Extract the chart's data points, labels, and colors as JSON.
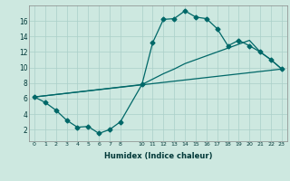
{
  "xlabel": "Humidex (Indice chaleur)",
  "background_color": "#cde8e0",
  "grid_color": "#aacfc8",
  "line_color": "#006868",
  "xlim": [
    -0.5,
    23.5
  ],
  "ylim": [
    0.5,
    18
  ],
  "xticks": [
    0,
    1,
    2,
    3,
    4,
    5,
    6,
    7,
    8,
    10,
    11,
    12,
    13,
    14,
    15,
    16,
    17,
    18,
    19,
    20,
    21,
    22,
    23
  ],
  "yticks": [
    2,
    4,
    6,
    8,
    10,
    12,
    14,
    16
  ],
  "line1_x": [
    0,
    1,
    2,
    3,
    4,
    5,
    6,
    7,
    8,
    10,
    11,
    12,
    13,
    14,
    15,
    16,
    17,
    18,
    19,
    20,
    21,
    22,
    23
  ],
  "line1_y": [
    6.2,
    5.5,
    4.5,
    3.2,
    2.3,
    2.4,
    1.5,
    2.0,
    3.0,
    7.8,
    13.2,
    16.2,
    16.3,
    17.3,
    16.5,
    16.3,
    15.0,
    12.8,
    13.5,
    12.8,
    12.0,
    11.0,
    9.8
  ],
  "line2_x": [
    0,
    10,
    11,
    12,
    13,
    14,
    15,
    16,
    17,
    18,
    19,
    20,
    21,
    22,
    23
  ],
  "line2_y": [
    6.2,
    7.8,
    8.5,
    9.2,
    9.8,
    10.5,
    11.0,
    11.5,
    12.0,
    12.5,
    13.0,
    13.5,
    12.0,
    11.0,
    9.8
  ],
  "line3_x": [
    0,
    23
  ],
  "line3_y": [
    6.2,
    9.8
  ]
}
